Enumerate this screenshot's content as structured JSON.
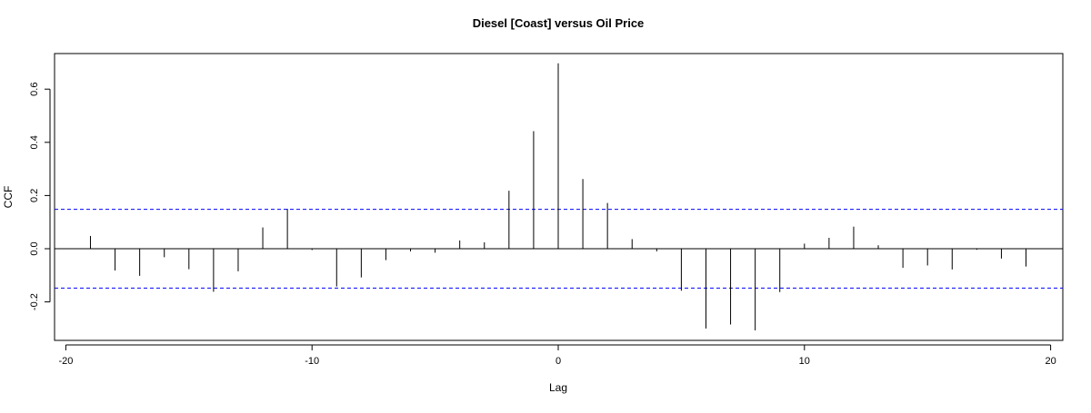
{
  "chart_data": {
    "type": "bar",
    "title": "Diesel [Coast] versus Oil Price",
    "xlabel": "Lag",
    "ylabel": "CCF",
    "xlim": [
      -20,
      20
    ],
    "ylim": [
      -0.3,
      0.7
    ],
    "x_ticks": [
      "-20",
      "-10",
      "0",
      "10",
      "20"
    ],
    "y_ticks": [
      "-0.2",
      "0.0",
      "0.2",
      "0.4",
      "0.6"
    ],
    "confidence_band": 0.148,
    "lags": [
      -19,
      -18,
      -17,
      -16,
      -15,
      -14,
      -13,
      -12,
      -11,
      -10,
      -9,
      -8,
      -7,
      -6,
      -5,
      -4,
      -3,
      -2,
      -1,
      0,
      1,
      2,
      3,
      4,
      5,
      6,
      7,
      8,
      9,
      10,
      11,
      12,
      13,
      14,
      15,
      16,
      17,
      18,
      19
    ],
    "values": [
      0.048,
      -0.082,
      -0.102,
      -0.032,
      -0.077,
      -0.162,
      -0.085,
      0.08,
      0.15,
      -0.005,
      -0.142,
      -0.108,
      -0.043,
      -0.01,
      -0.015,
      0.031,
      0.024,
      0.218,
      0.442,
      0.697,
      0.262,
      0.172,
      0.036,
      -0.01,
      -0.158,
      -0.3,
      -0.285,
      -0.307,
      -0.163,
      0.019,
      0.041,
      0.083,
      0.013,
      -0.072,
      -0.063,
      -0.078,
      -0.004,
      -0.037,
      -0.067
    ],
    "colors": {
      "bars": "#000000",
      "band": "#0000ff",
      "frame": "#000000"
    }
  }
}
